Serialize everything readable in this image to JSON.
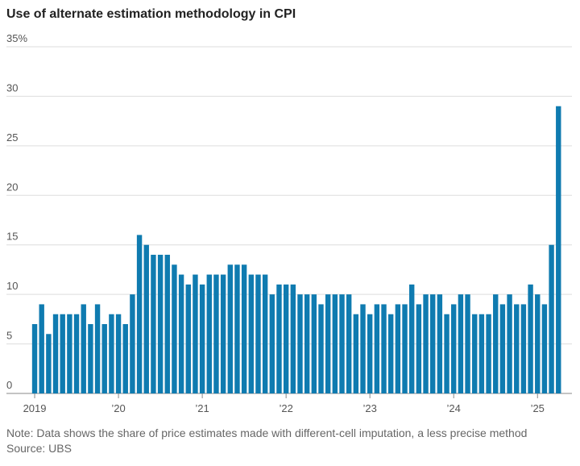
{
  "chart_data": {
    "type": "bar",
    "title": "Use of alternate estimation methodology in CPI",
    "note": "Note: Data shows the share of price estimates made with different-cell imputation, a less precise method",
    "source": "Source: UBS",
    "categories": [
      "2019",
      null,
      null,
      null,
      null,
      null,
      null,
      null,
      null,
      null,
      null,
      null,
      "’20",
      null,
      null,
      null,
      null,
      null,
      null,
      null,
      null,
      null,
      null,
      null,
      "’21",
      null,
      null,
      null,
      null,
      null,
      null,
      null,
      null,
      null,
      null,
      null,
      "’22",
      null,
      null,
      null,
      null,
      null,
      null,
      null,
      null,
      null,
      null,
      null,
      "’23",
      null,
      null,
      null,
      null,
      null,
      null,
      null,
      null,
      null,
      null,
      null,
      "’24",
      null,
      null,
      null,
      null,
      null,
      null,
      null,
      null,
      null,
      null,
      null,
      "’25",
      null,
      null,
      null
    ],
    "values": [
      7,
      9,
      6,
      8,
      8,
      8,
      8,
      9,
      7,
      9,
      7,
      8,
      8,
      7,
      10,
      16,
      15,
      14,
      14,
      14,
      13,
      12,
      11,
      12,
      11,
      12,
      12,
      12,
      13,
      13,
      13,
      12,
      12,
      12,
      10,
      11,
      11,
      11,
      10,
      10,
      10,
      9,
      10,
      10,
      10,
      10,
      8,
      9,
      8,
      9,
      9,
      8,
      9,
      9,
      11,
      9,
      10,
      10,
      10,
      8,
      9,
      10,
      10,
      8,
      8,
      8,
      10,
      9,
      10,
      9,
      9,
      11,
      10,
      9,
      15,
      29
    ],
    "color": "#0f7bb0",
    "ylim": [
      0,
      35
    ],
    "yticks": [
      0,
      5,
      10,
      15,
      20,
      25,
      30,
      {
        "value": 35,
        "label": "35%"
      }
    ],
    "grid": true
  }
}
